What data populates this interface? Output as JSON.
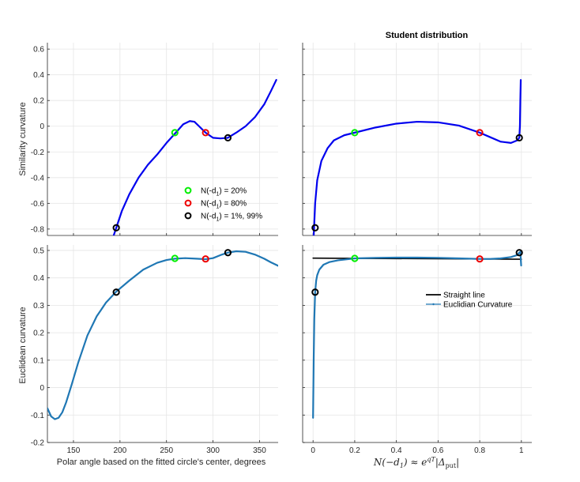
{
  "figure": {
    "title_top_right": "Student distribution",
    "ylabel_top": "Similarity curvature",
    "ylabel_bottom": "Euclidean curvature",
    "xlabel_left": "Polar angle based on the fitted circle's center, degrees",
    "legend_top_left": [
      {
        "label": "N(-d",
        "sub": "1",
        "rest": ") = 20%",
        "color": "#00ee00"
      },
      {
        "label": "N(-d",
        "sub": "1",
        "rest": ") = 80%",
        "color": "#ee0000"
      },
      {
        "label": "N(-d",
        "sub": "1",
        "rest": ") = 1%, 99%",
        "color": "#000000"
      }
    ],
    "legend_bottom_right": [
      {
        "label": "Straight line",
        "color": "#000000"
      },
      {
        "label": "Euclidian Curvature",
        "color": "#1f77b4"
      }
    ]
  },
  "chart_data": [
    {
      "panel": "top-left",
      "type": "line",
      "xlim": [
        122,
        370
      ],
      "ylim": [
        -0.85,
        0.65
      ],
      "xticks": [
        150,
        200,
        250,
        300,
        350
      ],
      "yticks": [
        -0.8,
        -0.6,
        -0.4,
        -0.2,
        0,
        0.2,
        0.4,
        0.6
      ],
      "ytick_labels": [
        "-0.8",
        "-0.6",
        "-0.4",
        "-0.2",
        "0",
        "0.2",
        "0.4",
        "0.6"
      ],
      "show_xticklabels": false,
      "line_color": "#0000ee",
      "series": [
        {
          "x": [
            190,
            196,
            202,
            210,
            220,
            230,
            240,
            250,
            260,
            268,
            275,
            280,
            285,
            292,
            300,
            308,
            316,
            325,
            335,
            345,
            355,
            362,
            368
          ],
          "y": [
            -0.92,
            -0.79,
            -0.66,
            -0.53,
            -0.4,
            -0.3,
            -0.22,
            -0.13,
            -0.05,
            0.015,
            0.04,
            0.035,
            0.0,
            -0.05,
            -0.09,
            -0.095,
            -0.09,
            -0.05,
            0.0,
            0.07,
            0.17,
            0.27,
            0.36
          ]
        }
      ],
      "markers": [
        {
          "x": 196,
          "y": -0.79,
          "color": "#000000"
        },
        {
          "x": 259,
          "y": -0.05,
          "color": "#00ee00"
        },
        {
          "x": 292,
          "y": -0.05,
          "color": "#ee0000"
        },
        {
          "x": 316,
          "y": -0.09,
          "color": "#000000"
        }
      ]
    },
    {
      "panel": "top-right",
      "type": "line",
      "title": "Student distribution",
      "xlim": [
        -0.05,
        1.05
      ],
      "ylim": [
        -0.85,
        0.65
      ],
      "xticks": [
        0,
        0.2,
        0.4,
        0.6,
        0.8,
        1
      ],
      "yticks": [
        -0.8,
        -0.6,
        -0.4,
        -0.2,
        0,
        0.2,
        0.4,
        0.6
      ],
      "show_xticklabels": false,
      "show_yticklabels": false,
      "line_color": "#0000ee",
      "series": [
        {
          "x": [
            0.0,
            0.005,
            0.01,
            0.02,
            0.04,
            0.07,
            0.1,
            0.15,
            0.2,
            0.3,
            0.4,
            0.5,
            0.6,
            0.7,
            0.8,
            0.85,
            0.9,
            0.95,
            0.98,
            0.99,
            0.993,
            0.995,
            0.997
          ],
          "y": [
            -0.95,
            -0.79,
            -0.6,
            -0.42,
            -0.27,
            -0.17,
            -0.11,
            -0.07,
            -0.05,
            -0.01,
            0.02,
            0.035,
            0.03,
            0.005,
            -0.05,
            -0.085,
            -0.12,
            -0.13,
            -0.11,
            -0.09,
            0.0,
            0.2,
            0.36
          ]
        }
      ],
      "markers": [
        {
          "x": 0.01,
          "y": -0.79,
          "color": "#000000"
        },
        {
          "x": 0.2,
          "y": -0.05,
          "color": "#00ee00"
        },
        {
          "x": 0.8,
          "y": -0.05,
          "color": "#ee0000"
        },
        {
          "x": 0.99,
          "y": -0.09,
          "color": "#000000"
        }
      ]
    },
    {
      "panel": "bottom-left",
      "type": "line",
      "xlabel": "Polar angle based on the fitted circle's center, degrees",
      "xlim": [
        122,
        370
      ],
      "ylim": [
        -0.2,
        0.52
      ],
      "xticks": [
        150,
        200,
        250,
        300,
        350
      ],
      "xtick_labels": [
        "150",
        "200",
        "250",
        "300",
        "350"
      ],
      "yticks": [
        -0.2,
        -0.1,
        0,
        0.1,
        0.2,
        0.3,
        0.4,
        0.5
      ],
      "ytick_labels": [
        "-0.2",
        "-0.1",
        "0",
        "0.1",
        "0.2",
        "0.3",
        "0.4",
        "0.5"
      ],
      "line_color": "#1f77b4",
      "series": [
        {
          "x": [
            122,
            126,
            130,
            134,
            138,
            142,
            148,
            155,
            165,
            175,
            185,
            196,
            210,
            225,
            240,
            250,
            259,
            270,
            282,
            292,
            300,
            308,
            316,
            325,
            335,
            345,
            355,
            362,
            370
          ],
          "y": [
            -0.075,
            -0.105,
            -0.115,
            -0.11,
            -0.09,
            -0.055,
            0.01,
            0.09,
            0.19,
            0.26,
            0.31,
            0.35,
            0.39,
            0.43,
            0.455,
            0.465,
            0.47,
            0.472,
            0.47,
            0.468,
            0.472,
            0.483,
            0.492,
            0.497,
            0.495,
            0.485,
            0.47,
            0.457,
            0.444
          ]
        }
      ],
      "markers": [
        {
          "x": 196,
          "y": 0.348,
          "color": "#000000"
        },
        {
          "x": 259,
          "y": 0.471,
          "color": "#00ee00"
        },
        {
          "x": 292,
          "y": 0.469,
          "color": "#ee0000"
        },
        {
          "x": 316,
          "y": 0.492,
          "color": "#000000"
        }
      ]
    },
    {
      "panel": "bottom-right",
      "type": "line",
      "xlabel": "N(-d₁) ≈ e^{qT}|Δ_put|",
      "xlim": [
        -0.05,
        1.05
      ],
      "ylim": [
        -0.2,
        0.52
      ],
      "xticks": [
        0,
        0.2,
        0.4,
        0.6,
        0.8,
        1
      ],
      "xtick_labels": [
        "0",
        "0.2",
        "0.4",
        "0.6",
        "0.8",
        "1"
      ],
      "yticks": [
        -0.2,
        -0.1,
        0,
        0.1,
        0.2,
        0.3,
        0.4,
        0.5
      ],
      "show_yticklabels": false,
      "series": [
        {
          "name": "Straight line",
          "color": "#000000",
          "x": [
            0.0,
            1.0
          ],
          "y": [
            0.472,
            0.468
          ]
        },
        {
          "name": "Euclidian Curvature",
          "color": "#1f77b4",
          "x": [
            0.0,
            0.003,
            0.006,
            0.01,
            0.015,
            0.02,
            0.03,
            0.05,
            0.08,
            0.12,
            0.2,
            0.3,
            0.4,
            0.5,
            0.6,
            0.7,
            0.8,
            0.85,
            0.9,
            0.95,
            0.98,
            0.99,
            0.995,
            0.997,
            0.999
          ],
          "y": [
            -0.11,
            0.1,
            0.25,
            0.348,
            0.39,
            0.41,
            0.43,
            0.448,
            0.458,
            0.464,
            0.471,
            0.473,
            0.474,
            0.474,
            0.473,
            0.471,
            0.469,
            0.469,
            0.471,
            0.476,
            0.483,
            0.492,
            0.495,
            0.47,
            0.445
          ]
        }
      ],
      "markers": [
        {
          "x": 0.01,
          "y": 0.348,
          "color": "#000000"
        },
        {
          "x": 0.2,
          "y": 0.471,
          "color": "#00ee00"
        },
        {
          "x": 0.8,
          "y": 0.469,
          "color": "#ee0000"
        },
        {
          "x": 0.99,
          "y": 0.492,
          "color": "#000000"
        }
      ]
    }
  ]
}
